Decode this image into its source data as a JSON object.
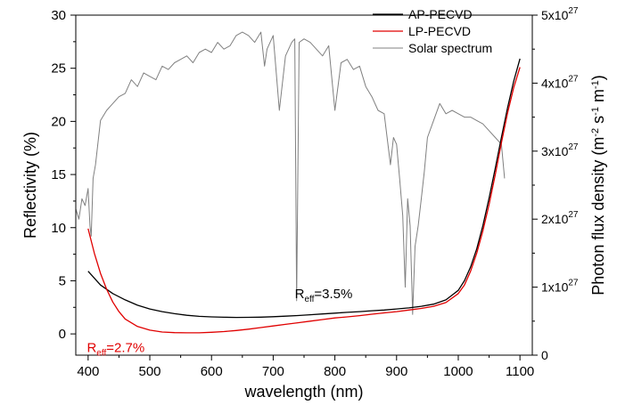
{
  "chart_data": {
    "type": "line",
    "xlabel": "wavelength (nm)",
    "ylabel_left": "Reflectivity (%)",
    "ylabel_right": {
      "base": "Photon flux density (m",
      "exp1": "-2",
      "mid1": " s",
      "exp2": "-1",
      "mid2": " m",
      "exp3": "-1",
      "end": ")"
    },
    "xlim": [
      380,
      1120
    ],
    "ylim_left": [
      -2,
      30
    ],
    "ylim_right": [
      0,
      5e+27
    ],
    "x_ticks": [
      400,
      500,
      600,
      700,
      800,
      900,
      1000,
      1100
    ],
    "y_ticks_left": [
      0,
      5,
      10,
      15,
      20,
      25,
      30
    ],
    "y_ticks_right": [
      {
        "value": 0,
        "mantissa": "0",
        "exp": ""
      },
      {
        "value": 1e+27,
        "mantissa": "1x10",
        "exp": "27"
      },
      {
        "value": 2e+27,
        "mantissa": "2x10",
        "exp": "27"
      },
      {
        "value": 3e+27,
        "mantissa": "3x10",
        "exp": "27"
      },
      {
        "value": 4e+27,
        "mantissa": "4x10",
        "exp": "27"
      },
      {
        "value": 5e+27,
        "mantissa": "5x10",
        "exp": "27"
      }
    ],
    "legend": {
      "placement": "top-right"
    },
    "series": [
      {
        "name": "AP-PECVD",
        "color": "#000000",
        "axis": "left",
        "x": [
          400,
          420,
          440,
          460,
          480,
          500,
          520,
          540,
          560,
          580,
          600,
          620,
          640,
          660,
          680,
          700,
          720,
          740,
          760,
          780,
          800,
          820,
          840,
          860,
          880,
          900,
          920,
          940,
          960,
          980,
          1000,
          1010,
          1020,
          1030,
          1040,
          1050,
          1060,
          1070,
          1080,
          1090,
          1100
        ],
        "y": [
          5.9,
          4.6,
          3.8,
          3.2,
          2.7,
          2.35,
          2.1,
          1.9,
          1.75,
          1.65,
          1.6,
          1.57,
          1.55,
          1.56,
          1.58,
          1.62,
          1.67,
          1.73,
          1.8,
          1.88,
          1.95,
          2.03,
          2.1,
          2.18,
          2.25,
          2.35,
          2.45,
          2.6,
          2.8,
          3.2,
          4.1,
          5.0,
          6.3,
          8.0,
          10.2,
          12.8,
          15.6,
          18.5,
          21.3,
          23.8,
          25.9
        ]
      },
      {
        "name": "LP-PECVD",
        "color": "#e00000",
        "axis": "left",
        "x": [
          400,
          410,
          420,
          430,
          440,
          450,
          460,
          480,
          500,
          520,
          540,
          560,
          580,
          600,
          620,
          640,
          660,
          680,
          700,
          720,
          740,
          760,
          780,
          800,
          820,
          840,
          860,
          880,
          900,
          920,
          940,
          960,
          980,
          1000,
          1010,
          1020,
          1030,
          1040,
          1050,
          1060,
          1070,
          1080,
          1090,
          1100
        ],
        "y": [
          9.9,
          7.6,
          5.7,
          4.2,
          3.0,
          2.1,
          1.4,
          0.7,
          0.35,
          0.18,
          0.12,
          0.1,
          0.1,
          0.15,
          0.22,
          0.32,
          0.45,
          0.6,
          0.75,
          0.9,
          1.05,
          1.2,
          1.35,
          1.5,
          1.6,
          1.72,
          1.85,
          1.98,
          2.1,
          2.25,
          2.4,
          2.6,
          2.95,
          3.8,
          4.6,
          5.9,
          7.6,
          9.7,
          12.2,
          15.0,
          18.0,
          20.8,
          23.2,
          25.1
        ]
      },
      {
        "name": "Solar spectrum",
        "color": "#808080",
        "axis": "right",
        "x": [
          380,
          385,
          390,
          395,
          400,
          403,
          405,
          408,
          412,
          420,
          430,
          440,
          450,
          460,
          470,
          480,
          490,
          500,
          510,
          520,
          530,
          540,
          550,
          560,
          570,
          580,
          590,
          600,
          610,
          620,
          630,
          640,
          650,
          660,
          670,
          680,
          686,
          690,
          700,
          710,
          720,
          730,
          735,
          738,
          742,
          750,
          760,
          770,
          780,
          790,
          800,
          810,
          820,
          830,
          840,
          850,
          860,
          870,
          880,
          890,
          895,
          900,
          905,
          910,
          914,
          918,
          922,
          926,
          930,
          935,
          940,
          945,
          950,
          960,
          970,
          980,
          990,
          1000,
          1010,
          1020,
          1030,
          1040,
          1050,
          1060,
          1070,
          1075
        ],
        "y": [
          2.15e+27,
          2e+27,
          2.3e+27,
          2.2e+27,
          2.45e+27,
          1.9e+27,
          1.75e+27,
          2.6e+27,
          2.8e+27,
          3.45e+27,
          3.6e+27,
          3.7e+27,
          3.8e+27,
          3.85e+27,
          4.05e+27,
          3.95e+27,
          4.15e+27,
          4.1e+27,
          4.05e+27,
          4.25e+27,
          4.2e+27,
          4.3e+27,
          4.35e+27,
          4.4e+27,
          4.3e+27,
          4.45e+27,
          4.5e+27,
          4.45e+27,
          4.6e+27,
          4.5e+27,
          4.55e+27,
          4.7e+27,
          4.75e+27,
          4.7e+27,
          4.6e+27,
          4.75e+27,
          4.25e+27,
          4.5e+27,
          4.7e+27,
          3.6e+27,
          4.4e+27,
          4.6e+27,
          4.65e+27,
          8e+26,
          4.6e+27,
          4.65e+27,
          4.6e+27,
          4.5e+27,
          4.4e+27,
          4.55e+27,
          3.6e+27,
          4.3e+27,
          4.35e+27,
          4.2e+27,
          4.25e+27,
          3.95e+27,
          3.8e+27,
          3.6e+27,
          3.55e+27,
          2.8e+27,
          3.2e+27,
          3.1e+27,
          2.6e+27,
          2.05e+27,
          1e+27,
          2.3e+27,
          1.9e+27,
          6e+26,
          1.6e+27,
          1.9e+27,
          2.3e+27,
          2.7e+27,
          3.2e+27,
          3.45e+27,
          3.7e+27,
          3.55e+27,
          3.6e+27,
          3.55e+27,
          3.5e+27,
          3.5e+27,
          3.45e+27,
          3.4e+27,
          3.3e+27,
          3.2e+27,
          3.1e+27,
          2.6e+27
        ]
      }
    ],
    "annotations": [
      {
        "id": "ap",
        "base": "R",
        "sub": "eff",
        "rest": "=3.5%",
        "color": "#000000",
        "x": 735,
        "y": 3.8
      },
      {
        "id": "lp",
        "base": "R",
        "sub": "eff",
        "rest": "=2.7%",
        "color": "#e00000",
        "x": 398,
        "y": -1.3
      }
    ]
  }
}
